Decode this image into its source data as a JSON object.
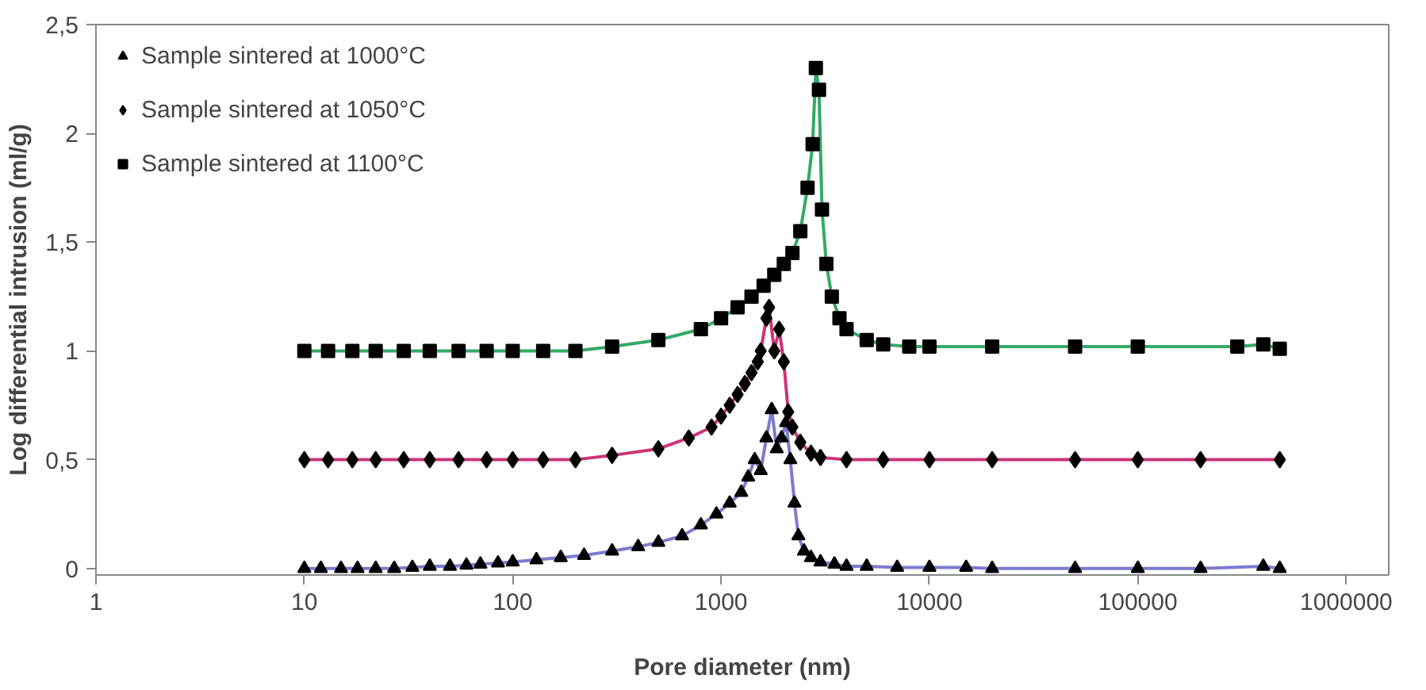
{
  "chart_data": {
    "type": "line",
    "xlabel": "Pore diameter (nm)",
    "ylabel": "Log differential intrusion (ml/g)",
    "log": "x",
    "grid": false,
    "legend": "top left",
    "line_style": "solid",
    "xlim": [
      1,
      1600000
    ],
    "xticks": [
      1,
      10,
      100,
      1000,
      10000,
      100000,
      1000000
    ],
    "ylim": [
      -0.03,
      2.5
    ],
    "yticks": [
      0,
      {
        "value": 0.5,
        "label": "0,5"
      },
      1,
      {
        "value": 1.5,
        "label": "1,5"
      },
      2,
      {
        "value": 2.5,
        "label": "2,5"
      }
    ],
    "series": [
      {
        "name": "Sample sintered at 1000°C",
        "color": "#7b7bd0",
        "marker": "triangle",
        "x": [
          10,
          12,
          15,
          18,
          22,
          27,
          33,
          40,
          50,
          60,
          70,
          85,
          100,
          130,
          170,
          220,
          300,
          400,
          500,
          650,
          800,
          950,
          1100,
          1250,
          1350,
          1450,
          1550,
          1650,
          1750,
          1850,
          1950,
          2050,
          2150,
          2250,
          2350,
          2500,
          2700,
          3000,
          3500,
          4000,
          5000,
          7000,
          10000,
          15000,
          20000,
          50000,
          100000,
          200000,
          400000,
          480000
        ],
        "values": [
          0,
          0,
          0,
          0,
          0,
          0,
          0.005,
          0.01,
          0.01,
          0.015,
          0.02,
          0.025,
          0.03,
          0.04,
          0.05,
          0.06,
          0.08,
          0.1,
          0.12,
          0.15,
          0.2,
          0.25,
          0.3,
          0.35,
          0.42,
          0.5,
          0.45,
          0.6,
          0.73,
          0.55,
          0.6,
          0.67,
          0.5,
          0.3,
          0.15,
          0.08,
          0.05,
          0.03,
          0.02,
          0.01,
          0.01,
          0.005,
          0.005,
          0.005,
          0,
          0,
          0,
          0,
          0.01,
          0
        ]
      },
      {
        "name": "Sample sintered at 1050°C",
        "color": "#cc3377",
        "marker": "diamond",
        "x": [
          10,
          13,
          17,
          22,
          30,
          40,
          55,
          75,
          100,
          140,
          200,
          300,
          500,
          700,
          900,
          1000,
          1100,
          1200,
          1300,
          1400,
          1500,
          1550,
          1650,
          1700,
          1800,
          1900,
          2000,
          2100,
          2200,
          2400,
          2700,
          3000,
          4000,
          6000,
          10000,
          20000,
          50000,
          100000,
          200000,
          480000
        ],
        "values": [
          0.5,
          0.5,
          0.5,
          0.5,
          0.5,
          0.5,
          0.5,
          0.5,
          0.5,
          0.5,
          0.5,
          0.52,
          0.55,
          0.6,
          0.65,
          0.7,
          0.75,
          0.8,
          0.85,
          0.9,
          0.95,
          1.0,
          1.15,
          1.2,
          1.0,
          1.1,
          0.95,
          0.72,
          0.65,
          0.58,
          0.53,
          0.51,
          0.5,
          0.5,
          0.5,
          0.5,
          0.5,
          0.5,
          0.5,
          0.5
        ]
      },
      {
        "name": "Sample sintered at 1100°C",
        "color": "#33aa66",
        "marker": "square",
        "x": [
          10,
          13,
          17,
          22,
          30,
          40,
          55,
          75,
          100,
          140,
          200,
          300,
          500,
          800,
          1000,
          1200,
          1400,
          1600,
          1800,
          2000,
          2200,
          2400,
          2600,
          2750,
          2850,
          2950,
          3050,
          3200,
          3400,
          3700,
          4000,
          5000,
          6000,
          8000,
          10000,
          20000,
          50000,
          100000,
          300000,
          400000,
          480000
        ],
        "values": [
          1.0,
          1.0,
          1.0,
          1.0,
          1.0,
          1.0,
          1.0,
          1.0,
          1.0,
          1.0,
          1.0,
          1.02,
          1.05,
          1.1,
          1.15,
          1.2,
          1.25,
          1.3,
          1.35,
          1.4,
          1.45,
          1.55,
          1.75,
          1.95,
          2.3,
          2.2,
          1.65,
          1.4,
          1.25,
          1.15,
          1.1,
          1.05,
          1.03,
          1.02,
          1.02,
          1.02,
          1.02,
          1.02,
          1.02,
          1.03,
          1.01
        ]
      }
    ]
  }
}
